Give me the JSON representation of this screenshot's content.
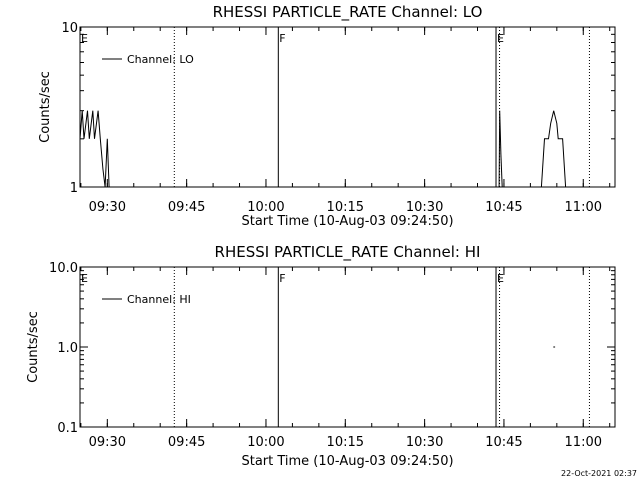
{
  "chart_data": [
    {
      "type": "line",
      "title": "RHESSI PARTICLE_RATE Channel: LO",
      "xlabel": "Start Time (10-Aug-03 09:24:50)",
      "ylabel": "Counts/sec",
      "yscale": "log",
      "ylim": [
        1,
        10
      ],
      "y_tick_labels": [
        "1",
        "10"
      ],
      "xlim": [
        "09:24:50",
        "11:06:00"
      ],
      "x_tick_labels": [
        "09:30",
        "09:45",
        "10:00",
        "10:15",
        "10:30",
        "10:45",
        "11:00"
      ],
      "legend": {
        "placement": "top-left",
        "entries": [
          "Channel: LO"
        ]
      },
      "series": [
        {
          "name": "Channel: LO",
          "points": [
            [
              "09:24:50",
              2
            ],
            [
              "09:25:15",
              3
            ],
            [
              "09:25:35",
              2
            ],
            [
              "09:26:15",
              3
            ],
            [
              "09:26:35",
              2
            ],
            [
              "09:27:15",
              3
            ],
            [
              "09:27:35",
              2
            ],
            [
              "09:28:15",
              3
            ],
            [
              "09:28:40",
              2
            ],
            [
              "09:29:10",
              1.3
            ],
            [
              "09:29:35",
              1
            ],
            [
              "09:30:00",
              2
            ],
            [
              "09:30:20",
              1
            ],
            [
              "09:30:45",
              1
            ]
          ]
        },
        {
          "name": "Channel: LO",
          "points": [
            [
              "10:44:05",
              1
            ],
            [
              "10:44:12",
              3
            ],
            [
              "10:44:25",
              1.6
            ],
            [
              "10:44:40",
              1
            ]
          ]
        },
        {
          "name": "Channel: LO",
          "points": [
            [
              "10:52:05",
              1
            ],
            [
              "10:52:40",
              2
            ],
            [
              "10:53:25",
              2
            ],
            [
              "10:53:50",
              2.5
            ],
            [
              "10:54:25",
              3
            ],
            [
              "10:55:00",
              2.5
            ],
            [
              "10:55:15",
              2
            ],
            [
              "10:56:05",
              2
            ],
            [
              "10:56:40",
              1
            ]
          ]
        }
      ],
      "annotations": [
        {
          "text": "E",
          "time": "09:24:50",
          "line": "none"
        },
        {
          "text": "",
          "time": "09:42:40",
          "line": "dotted"
        },
        {
          "text": "F",
          "time": "10:02:20",
          "line": "solid"
        },
        {
          "text": "E",
          "time": "10:43:30",
          "line": "solid"
        },
        {
          "text": "",
          "time": "10:44:10",
          "line": "dotted"
        },
        {
          "text": "",
          "time": "11:01:10",
          "line": "dotted"
        }
      ]
    },
    {
      "type": "line",
      "title": "RHESSI PARTICLE_RATE Channel: HI",
      "xlabel": "Start Time (10-Aug-03 09:24:50)",
      "ylabel": "Counts/sec",
      "yscale": "log",
      "ylim": [
        0.1,
        10
      ],
      "y_tick_labels": [
        "0.1",
        "1.0",
        "10.0"
      ],
      "xlim": [
        "09:24:50",
        "11:06:00"
      ],
      "x_tick_labels": [
        "09:30",
        "09:45",
        "10:00",
        "10:15",
        "10:30",
        "10:45",
        "11:00"
      ],
      "legend": {
        "placement": "top-left",
        "entries": [
          "Channel: HI"
        ]
      },
      "series": [
        {
          "name": "Channel: HI",
          "points": [
            [
              "10:54:20",
              1
            ],
            [
              "10:54:40",
              1
            ]
          ]
        }
      ],
      "annotations": [
        {
          "text": "E",
          "time": "09:24:50",
          "line": "none"
        },
        {
          "text": "",
          "time": "09:42:40",
          "line": "dotted"
        },
        {
          "text": "F",
          "time": "10:02:20",
          "line": "solid"
        },
        {
          "text": "E",
          "time": "10:43:30",
          "line": "solid"
        },
        {
          "text": "",
          "time": "10:44:10",
          "line": "dotted"
        },
        {
          "text": "",
          "time": "11:01:10",
          "line": "dotted"
        }
      ]
    }
  ],
  "footer": {
    "timestamp": "22-Oct-2021 02:37"
  }
}
